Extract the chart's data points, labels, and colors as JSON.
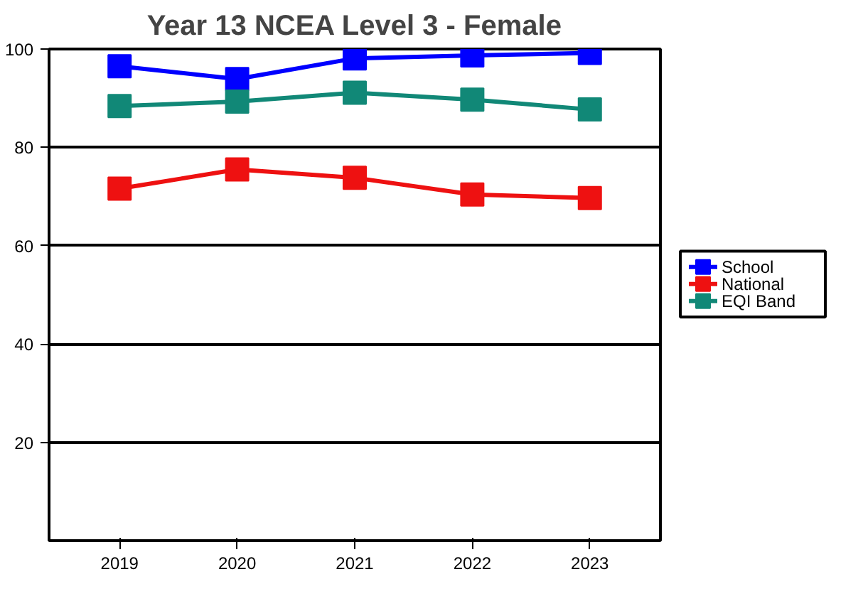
{
  "chart_data": {
    "type": "line",
    "title": "Year 13 NCEA Level 3 - Female",
    "categories": [
      "2019",
      "2020",
      "2021",
      "2022",
      "2023"
    ],
    "series": [
      {
        "name": "School",
        "color": "#0000ff",
        "values": [
          96.5,
          93.9,
          98.1,
          98.7,
          99.2
        ]
      },
      {
        "name": "National",
        "color": "#ee1111",
        "values": [
          71.6,
          75.5,
          73.8,
          70.4,
          69.7
        ]
      },
      {
        "name": "EQI Band",
        "color": "#118877",
        "values": [
          88.4,
          89.3,
          91.1,
          89.7,
          87.7
        ]
      }
    ],
    "ylim": [
      0,
      100
    ],
    "yticks": [
      20,
      40,
      60,
      80,
      100
    ],
    "grid": "y",
    "legend": "right",
    "marker": "square",
    "line_style": "solid"
  }
}
